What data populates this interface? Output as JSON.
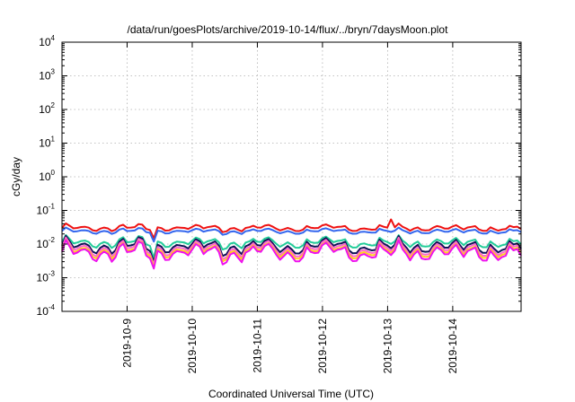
{
  "chart_data": {
    "type": "line",
    "title": "/data/run/goesPlots/archive/2019-10-14/flux/../bryn/7daysMoon.plot",
    "xlabel": "Coordinated Universal Time (UTC)",
    "ylabel": "cGy/day",
    "yscale": "log",
    "ylim": [
      0.0001,
      10000
    ],
    "xlim_days": [
      0,
      7.05
    ],
    "y_ticks": [
      {
        "base": "10",
        "exp": "-4",
        "value": 0.0001
      },
      {
        "base": "10",
        "exp": "-3",
        "value": 0.001
      },
      {
        "base": "10",
        "exp": "-2",
        "value": 0.01
      },
      {
        "base": "10",
        "exp": "-1",
        "value": 0.1
      },
      {
        "base": "10",
        "exp": "0",
        "value": 1
      },
      {
        "base": "10",
        "exp": "1",
        "value": 10
      },
      {
        "base": "10",
        "exp": "2",
        "value": 100
      },
      {
        "base": "10",
        "exp": "3",
        "value": 1000
      },
      {
        "base": "10",
        "exp": "4",
        "value": 10000
      }
    ],
    "x_ticks": [
      {
        "label": "2019-10-9",
        "day": 1
      },
      {
        "label": "2019-10-10",
        "day": 2
      },
      {
        "label": "2019-10-11",
        "day": 3
      },
      {
        "label": "2019-10-12",
        "day": 4
      },
      {
        "label": "2019-10-13",
        "day": 5
      },
      {
        "label": "2019-10-14",
        "day": 6
      }
    ],
    "grid": true,
    "series": [
      {
        "color": "#ee1111",
        "base": 0.03,
        "amp": 0.12
      },
      {
        "color": "#3366ee",
        "base": 0.024,
        "amp": 0.1
      },
      {
        "color": "#22cc99",
        "base": 0.011,
        "amp": 0.2
      },
      {
        "color": "#111155",
        "base": 0.0085,
        "amp": 0.28
      },
      {
        "color": "#ff66cc",
        "base": 0.0072,
        "amp": 0.3
      },
      {
        "color": "#ffcc22",
        "base": 0.0062,
        "amp": 0.3
      },
      {
        "color": "#ee11ee",
        "base": 0.0055,
        "amp": 0.34
      }
    ]
  }
}
